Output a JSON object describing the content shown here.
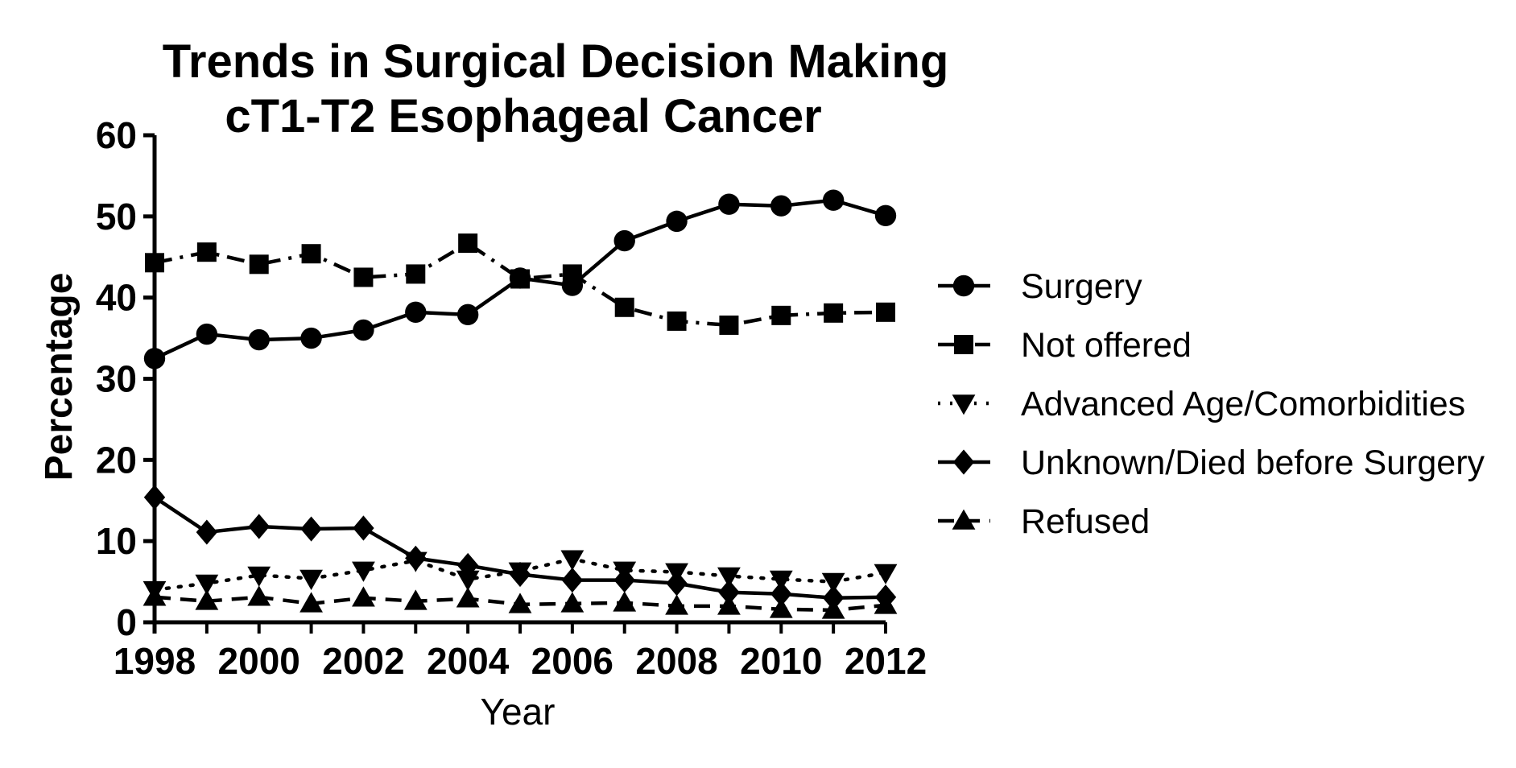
{
  "chart_data": {
    "type": "line",
    "title": "Trends in Surgical Decision Making",
    "subtitle": "cT1-T2 Esophageal Cancer",
    "xlabel": "Year",
    "ylabel": "Percentage",
    "xlim": [
      1998,
      2012
    ],
    "ylim": [
      0,
      60
    ],
    "x_ticks": [
      "1998",
      "2000",
      "2002",
      "2004",
      "2006",
      "2008",
      "2010",
      "2012"
    ],
    "y_ticks": [
      "0",
      "10",
      "20",
      "30",
      "40",
      "50",
      "60"
    ],
    "grid": false,
    "legend_position": "right",
    "x": [
      1998,
      1999,
      2000,
      2001,
      2002,
      2003,
      2004,
      2005,
      2006,
      2007,
      2008,
      2009,
      2010,
      2011,
      2012
    ],
    "series": [
      {
        "name": "Surgery",
        "marker": "circle",
        "line_style": "solid",
        "values": [
          32.5,
          35.5,
          34.8,
          35.0,
          36.0,
          38.2,
          37.9,
          42.4,
          41.5,
          47.0,
          49.4,
          51.5,
          51.3,
          52.0,
          50.1
        ]
      },
      {
        "name": "Not offered",
        "marker": "square",
        "line_style": "dash-dot",
        "values": [
          44.3,
          45.6,
          44.1,
          45.4,
          42.5,
          42.9,
          46.7,
          42.3,
          42.9,
          38.8,
          37.1,
          36.6,
          37.8,
          38.1,
          38.2
        ]
      },
      {
        "name": "Advanced Age/Comorbidities",
        "marker": "triangle-down",
        "line_style": "dotted",
        "values": [
          4.0,
          4.8,
          5.8,
          5.4,
          6.4,
          7.6,
          5.3,
          6.3,
          7.8,
          6.4,
          6.2,
          5.7,
          5.3,
          5.0,
          6.1
        ]
      },
      {
        "name": "Unknown/Died before Surgery",
        "marker": "diamond",
        "line_style": "solid",
        "values": [
          15.4,
          11.1,
          11.8,
          11.5,
          11.6,
          7.9,
          7.0,
          5.9,
          5.2,
          5.2,
          4.8,
          3.7,
          3.5,
          3.0,
          3.1
        ]
      },
      {
        "name": "Refused",
        "marker": "triangle-up",
        "line_style": "dashed",
        "values": [
          3.1,
          2.6,
          3.1,
          2.3,
          3.0,
          2.6,
          2.9,
          2.2,
          2.3,
          2.4,
          2.0,
          2.0,
          1.6,
          1.5,
          2.1
        ]
      }
    ]
  }
}
